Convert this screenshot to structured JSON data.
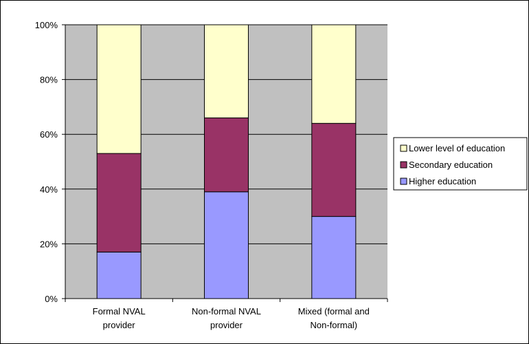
{
  "chart_data": {
    "type": "bar",
    "stacked": true,
    "percent_scale": true,
    "categories": [
      [
        "Formal NVAL",
        "provider"
      ],
      [
        "Non-formal NVAL",
        "provider"
      ],
      [
        "Mixed (formal and",
        "Non-formal)"
      ]
    ],
    "series": [
      {
        "name": "Higher education",
        "values": [
          17,
          39,
          30
        ],
        "color": "#9999ff"
      },
      {
        "name": "Secondary education",
        "values": [
          36,
          27,
          34
        ],
        "color": "#993366"
      },
      {
        "name": "Lower level of education",
        "values": [
          47,
          34,
          36
        ],
        "color": "#ffffcc"
      }
    ],
    "legend_order": [
      "Lower level of education",
      "Secondary education",
      "Higher education"
    ],
    "ylim": [
      0,
      100
    ],
    "yticks": [
      "0%",
      "20%",
      "40%",
      "60%",
      "80%",
      "100%"
    ],
    "grid": true,
    "plot_background": "#c0c0c0",
    "legend_position": "right"
  }
}
